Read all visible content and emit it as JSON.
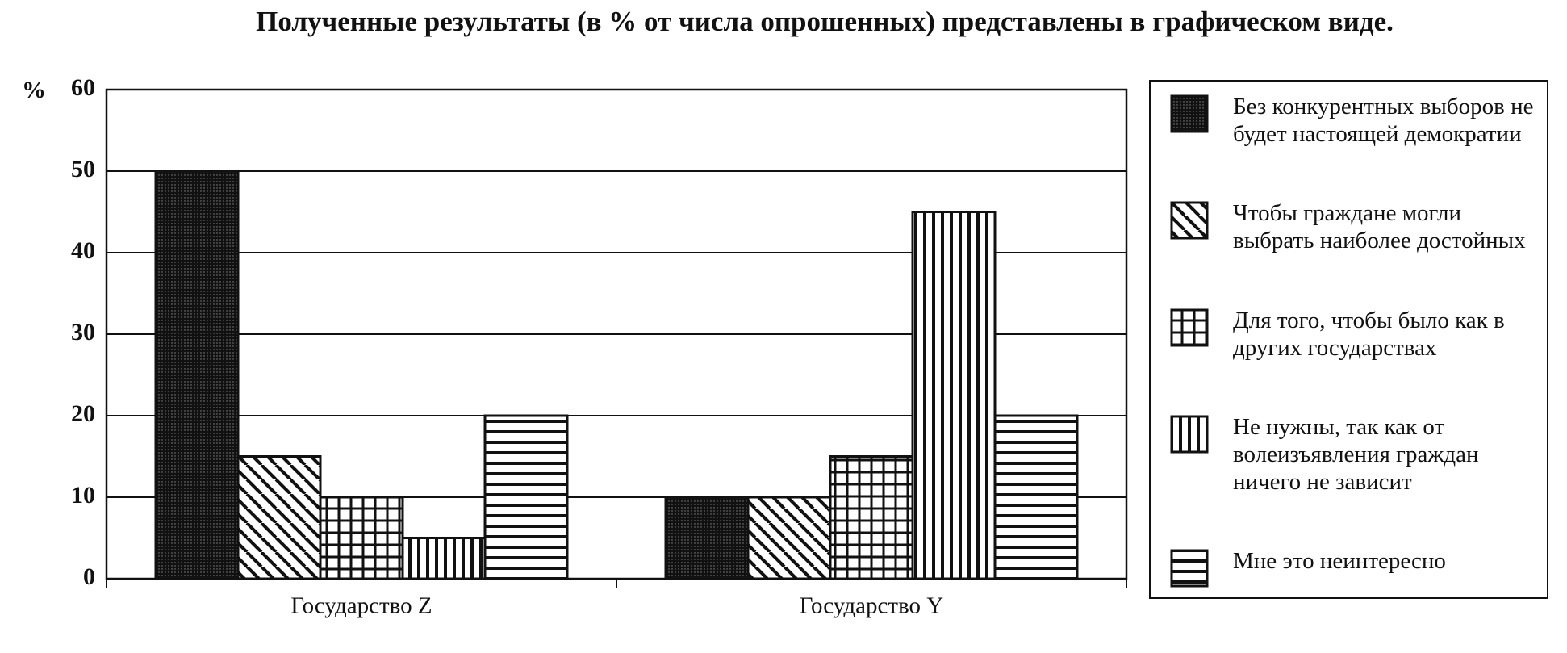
{
  "chart_data": {
    "type": "bar",
    "title": "Полученные результаты (в % от числа опрошенных) представлены в графическом виде.",
    "ylabel": "%",
    "categories": [
      "Государство Z",
      "Государство Y"
    ],
    "series": [
      {
        "name": "Без конкурентных выборов не будет настоящей демократии",
        "color": "#111111",
        "pattern": "dots",
        "values": [
          50,
          10
        ]
      },
      {
        "name": "Чтобы граждане могли выбрать наиболее достойных",
        "color": "#111111",
        "pattern": "diagonal",
        "values": [
          15,
          10
        ]
      },
      {
        "name": "Для того, чтобы было как в других государствах",
        "color": "#111111",
        "pattern": "grid",
        "values": [
          10,
          15
        ]
      },
      {
        "name": "Не нужны, так как от волеизъявления граждан ничего не зависит",
        "color": "#111111",
        "pattern": "vertical",
        "values": [
          5,
          45
        ]
      },
      {
        "name": "Мне это неинтересно",
        "color": "#111111",
        "pattern": "horizontal",
        "values": [
          20,
          20
        ]
      }
    ],
    "ylim": [
      0,
      60
    ],
    "yticks": [
      0,
      10,
      20,
      30,
      40,
      50,
      60
    ],
    "grid": true,
    "legend": "right"
  }
}
